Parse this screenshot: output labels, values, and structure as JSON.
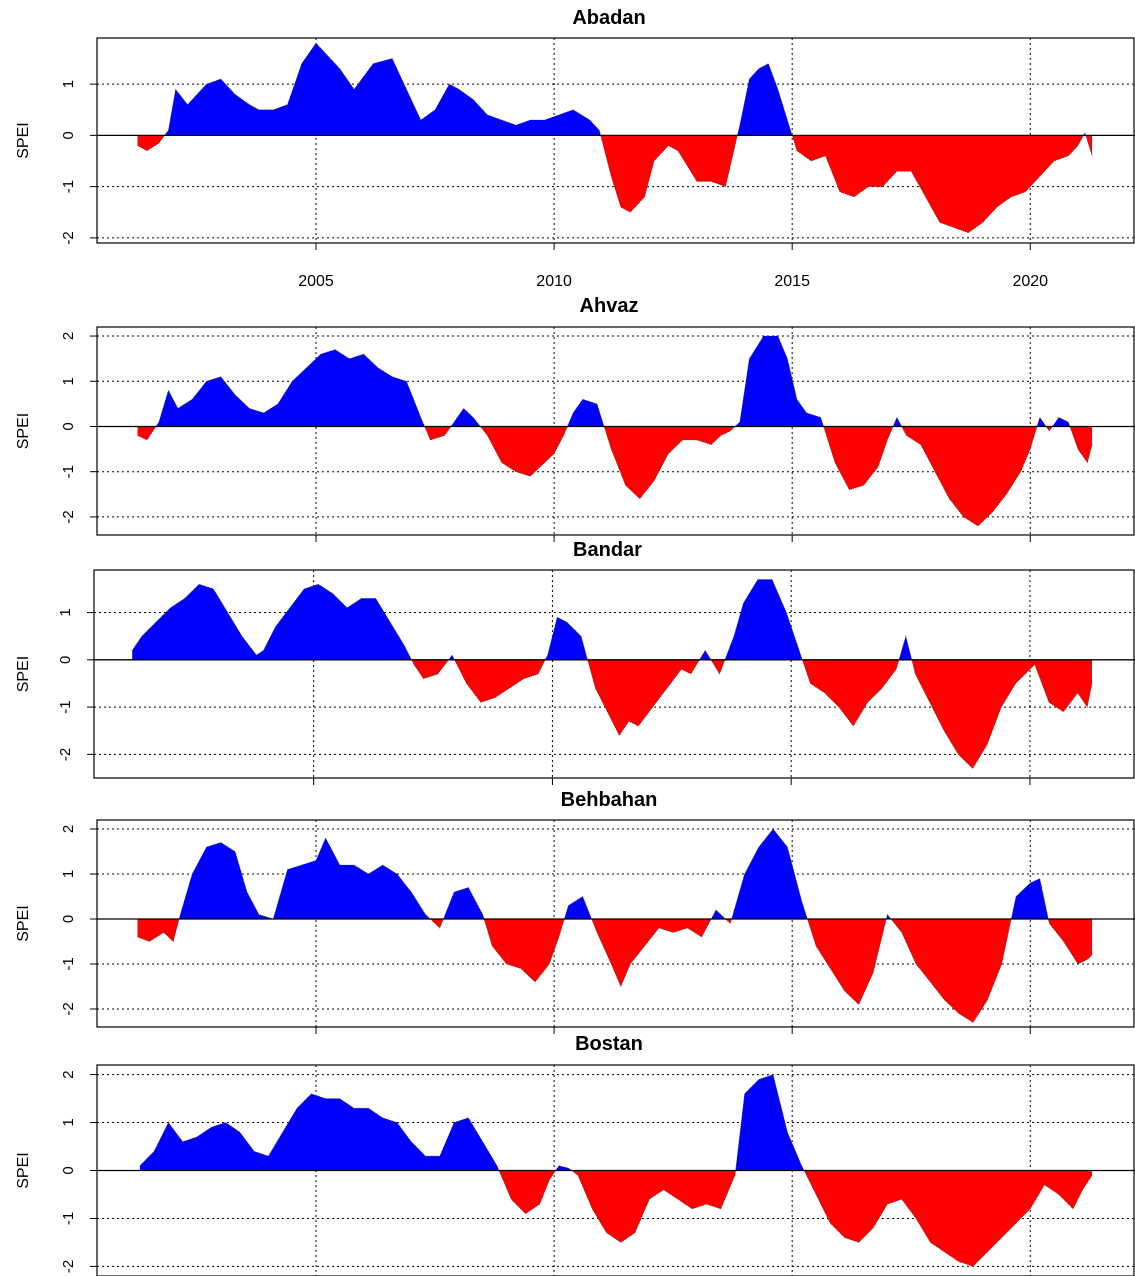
{
  "colors": {
    "positive": "#0000ff",
    "negative": "#ff0000",
    "axis": "#000000",
    "grid": "#000000"
  },
  "chart_data": [
    {
      "type": "area",
      "title": "Abadan",
      "ylabel": "SPEI",
      "xlim": [
        2000.4,
        2022.2
      ],
      "ylim": [
        -2.1,
        1.9
      ],
      "x_ticks": [
        2005,
        2010,
        2015,
        2020
      ],
      "x_tick_labels": [
        "2005",
        "2010",
        "2015",
        "2020"
      ],
      "y_ticks": [
        -2,
        -1,
        0,
        1
      ],
      "grid": true,
      "x": [
        2001.25,
        2001.45,
        2001.7,
        2001.9,
        2002.05,
        2002.3,
        2002.7,
        2003.0,
        2003.3,
        2003.6,
        2003.8,
        2004.1,
        2004.4,
        2004.7,
        2005.0,
        2005.2,
        2005.5,
        2005.8,
        2006.2,
        2006.6,
        2006.9,
        2007.2,
        2007.5,
        2007.8,
        2008.0,
        2008.3,
        2008.6,
        2008.9,
        2009.2,
        2009.5,
        2009.8,
        2010.1,
        2010.4,
        2010.75,
        2010.95,
        2011.2,
        2011.4,
        2011.6,
        2011.9,
        2012.1,
        2012.4,
        2012.6,
        2012.8,
        2013.0,
        2013.3,
        2013.6,
        2013.9,
        2014.1,
        2014.3,
        2014.5,
        2014.7,
        2014.9,
        2015.1,
        2015.4,
        2015.7,
        2016.0,
        2016.3,
        2016.6,
        2016.9,
        2017.2,
        2017.5,
        2017.8,
        2018.1,
        2018.4,
        2018.7,
        2019.0,
        2019.3,
        2019.6,
        2019.9,
        2020.2,
        2020.5,
        2020.8,
        2021.0,
        2021.15,
        2021.3
      ],
      "values": [
        -0.2,
        -0.3,
        -0.15,
        0.1,
        0.9,
        0.6,
        1.0,
        1.1,
        0.8,
        0.6,
        0.5,
        0.5,
        0.6,
        1.4,
        1.8,
        1.6,
        1.3,
        0.9,
        1.4,
        1.5,
        0.9,
        0.3,
        0.5,
        1.0,
        0.9,
        0.7,
        0.4,
        0.3,
        0.2,
        0.3,
        0.3,
        0.4,
        0.5,
        0.3,
        0.1,
        -0.8,
        -1.4,
        -1.5,
        -1.2,
        -0.5,
        -0.2,
        -0.3,
        -0.6,
        -0.9,
        -0.9,
        -1.0,
        0.2,
        1.1,
        1.3,
        1.4,
        0.9,
        0.3,
        -0.3,
        -0.5,
        -0.4,
        -1.1,
        -1.2,
        -1.0,
        -1.0,
        -0.7,
        -0.7,
        -1.2,
        -1.7,
        -1.8,
        -1.9,
        -1.7,
        -1.4,
        -1.2,
        -1.1,
        -0.8,
        -0.5,
        -0.4,
        -0.2,
        0.05,
        -0.4
      ]
    },
    {
      "type": "area",
      "title": "Ahvaz",
      "ylabel": "SPEI",
      "xlim": [
        2000.4,
        2022.2
      ],
      "ylim": [
        -2.4,
        2.2
      ],
      "x_ticks": [
        2005,
        2010,
        2015,
        2020
      ],
      "x_tick_labels": [],
      "y_ticks": [
        -2,
        -1,
        0,
        1,
        2
      ],
      "grid": true,
      "x": [
        2001.25,
        2001.45,
        2001.7,
        2001.9,
        2002.1,
        2002.4,
        2002.7,
        2003.0,
        2003.3,
        2003.6,
        2003.9,
        2004.2,
        2004.5,
        2004.8,
        2005.1,
        2005.4,
        2005.7,
        2006.0,
        2006.3,
        2006.6,
        2006.9,
        2007.2,
        2007.4,
        2007.7,
        2007.9,
        2008.1,
        2008.3,
        2008.6,
        2008.9,
        2009.2,
        2009.5,
        2009.8,
        2010.0,
        2010.2,
        2010.4,
        2010.6,
        2010.9,
        2011.2,
        2011.5,
        2011.8,
        2012.1,
        2012.4,
        2012.7,
        2013.0,
        2013.3,
        2013.5,
        2013.7,
        2013.9,
        2014.1,
        2014.4,
        2014.7,
        2014.9,
        2015.1,
        2015.3,
        2015.6,
        2015.9,
        2016.2,
        2016.5,
        2016.8,
        2017.0,
        2017.2,
        2017.4,
        2017.7,
        2018.0,
        2018.3,
        2018.6,
        2018.9,
        2019.2,
        2019.5,
        2019.8,
        2020.0,
        2020.2,
        2020.4,
        2020.6,
        2020.8,
        2021.0,
        2021.2,
        2021.3
      ],
      "values": [
        -0.2,
        -0.3,
        0.1,
        0.8,
        0.4,
        0.6,
        1.0,
        1.1,
        0.7,
        0.4,
        0.3,
        0.5,
        1.0,
        1.3,
        1.6,
        1.7,
        1.5,
        1.6,
        1.3,
        1.1,
        1.0,
        0.2,
        -0.3,
        -0.2,
        0.1,
        0.4,
        0.2,
        -0.2,
        -0.8,
        -1.0,
        -1.1,
        -0.8,
        -0.6,
        -0.2,
        0.3,
        0.6,
        0.5,
        -0.5,
        -1.3,
        -1.6,
        -1.2,
        -0.6,
        -0.3,
        -0.3,
        -0.4,
        -0.2,
        -0.1,
        0.1,
        1.5,
        2.0,
        2.0,
        1.5,
        0.6,
        0.3,
        0.2,
        -0.8,
        -1.4,
        -1.3,
        -0.9,
        -0.3,
        0.2,
        -0.2,
        -0.4,
        -1.0,
        -1.6,
        -2.0,
        -2.2,
        -1.9,
        -1.5,
        -1.0,
        -0.5,
        0.2,
        -0.1,
        0.2,
        0.1,
        -0.5,
        -0.8,
        -0.4
      ]
    },
    {
      "type": "area",
      "title": "Bandar",
      "ylabel": "SPEI",
      "xlim": [
        2000.4,
        2022.2
      ],
      "ylim": [
        -2.5,
        1.9
      ],
      "x_ticks": [
        2005,
        2010,
        2015,
        2020
      ],
      "x_tick_labels": [],
      "y_ticks": [
        -2,
        -1,
        0,
        1
      ],
      "grid": true,
      "x": [
        2001.2,
        2001.4,
        2001.7,
        2002.0,
        2002.3,
        2002.6,
        2002.9,
        2003.2,
        2003.5,
        2003.8,
        2003.95,
        2004.2,
        2004.5,
        2004.8,
        2005.1,
        2005.4,
        2005.7,
        2006.0,
        2006.3,
        2006.6,
        2006.9,
        2007.1,
        2007.3,
        2007.6,
        2007.9,
        2008.2,
        2008.5,
        2008.8,
        2009.1,
        2009.4,
        2009.7,
        2009.9,
        2010.1,
        2010.3,
        2010.6,
        2010.9,
        2011.2,
        2011.4,
        2011.6,
        2011.8,
        2012.1,
        2012.4,
        2012.7,
        2012.9,
        2013.2,
        2013.5,
        2013.8,
        2014.0,
        2014.3,
        2014.6,
        2014.9,
        2015.1,
        2015.4,
        2015.7,
        2016.0,
        2016.3,
        2016.6,
        2016.9,
        2017.2,
        2017.4,
        2017.6,
        2017.9,
        2018.2,
        2018.5,
        2018.8,
        2019.1,
        2019.4,
        2019.7,
        2019.9,
        2020.1,
        2020.4,
        2020.7,
        2021.0,
        2021.2,
        2021.3
      ],
      "values": [
        0.2,
        0.5,
        0.8,
        1.1,
        1.3,
        1.6,
        1.5,
        1.0,
        0.5,
        0.1,
        0.2,
        0.7,
        1.1,
        1.5,
        1.6,
        1.4,
        1.1,
        1.3,
        1.3,
        0.8,
        0.3,
        -0.1,
        -0.4,
        -0.3,
        0.1,
        -0.5,
        -0.9,
        -0.8,
        -0.6,
        -0.4,
        -0.3,
        0.1,
        0.9,
        0.8,
        0.5,
        -0.6,
        -1.2,
        -1.6,
        -1.3,
        -1.4,
        -1.0,
        -0.6,
        -0.2,
        -0.3,
        0.2,
        -0.3,
        0.5,
        1.2,
        1.7,
        1.7,
        1.0,
        0.4,
        -0.5,
        -0.7,
        -1.0,
        -1.4,
        -0.9,
        -0.6,
        -0.2,
        0.5,
        -0.3,
        -0.9,
        -1.5,
        -2.0,
        -2.3,
        -1.8,
        -1.0,
        -0.5,
        -0.3,
        -0.1,
        -0.9,
        -1.1,
        -0.7,
        -1.0,
        -0.5
      ]
    },
    {
      "type": "area",
      "title": "Behbahan",
      "ylabel": "SPEI",
      "xlim": [
        2000.4,
        2022.2
      ],
      "ylim": [
        -2.4,
        2.2
      ],
      "x_ticks": [
        2005,
        2010,
        2015,
        2020
      ],
      "x_tick_labels": [],
      "y_ticks": [
        -2,
        -1,
        0,
        1,
        2
      ],
      "grid": true,
      "x": [
        2001.25,
        2001.5,
        2001.8,
        2002.0,
        2002.15,
        2002.4,
        2002.7,
        2003.0,
        2003.3,
        2003.55,
        2003.8,
        2004.1,
        2004.4,
        2004.7,
        2005.0,
        2005.2,
        2005.5,
        2005.8,
        2006.1,
        2006.4,
        2006.7,
        2007.0,
        2007.3,
        2007.6,
        2007.9,
        2008.2,
        2008.5,
        2008.7,
        2009.0,
        2009.3,
        2009.6,
        2009.9,
        2010.1,
        2010.3,
        2010.6,
        2010.9,
        2011.2,
        2011.4,
        2011.6,
        2011.9,
        2012.2,
        2012.5,
        2012.8,
        2013.1,
        2013.4,
        2013.7,
        2014.0,
        2014.3,
        2014.6,
        2014.9,
        2015.2,
        2015.5,
        2015.8,
        2016.1,
        2016.4,
        2016.7,
        2017.0,
        2017.3,
        2017.6,
        2017.9,
        2018.2,
        2018.5,
        2018.8,
        2019.1,
        2019.4,
        2019.7,
        2020.0,
        2020.2,
        2020.4,
        2020.7,
        2021.0,
        2021.2,
        2021.3
      ],
      "values": [
        -0.4,
        -0.5,
        -0.3,
        -0.5,
        0.1,
        1.0,
        1.6,
        1.7,
        1.5,
        0.6,
        0.1,
        0.0,
        1.1,
        1.2,
        1.3,
        1.8,
        1.2,
        1.2,
        1.0,
        1.2,
        1.0,
        0.6,
        0.1,
        -0.2,
        0.6,
        0.7,
        0.1,
        -0.6,
        -1.0,
        -1.1,
        -1.4,
        -1.0,
        -0.4,
        0.3,
        0.5,
        -0.3,
        -1.0,
        -1.5,
        -1.0,
        -0.6,
        -0.2,
        -0.3,
        -0.2,
        -0.4,
        0.2,
        -0.1,
        1.0,
        1.6,
        2.0,
        1.6,
        0.4,
        -0.6,
        -1.1,
        -1.6,
        -1.9,
        -1.2,
        0.1,
        -0.3,
        -1.0,
        -1.4,
        -1.8,
        -2.1,
        -2.3,
        -1.8,
        -1.0,
        0.5,
        0.8,
        0.9,
        -0.1,
        -0.5,
        -1.0,
        -0.9,
        -0.8
      ]
    },
    {
      "type": "area",
      "title": "Bostan",
      "ylabel": "SPEI",
      "xlim": [
        2000.4,
        2022.2
      ],
      "ylim": [
        -2.2,
        2.2
      ],
      "x_ticks": [
        2005,
        2010,
        2015,
        2020
      ],
      "x_tick_labels": [],
      "y_ticks": [
        -2,
        -1,
        0,
        1,
        2
      ],
      "grid": true,
      "x": [
        2001.3,
        2001.6,
        2001.9,
        2002.2,
        2002.5,
        2002.8,
        2003.1,
        2003.4,
        2003.7,
        2004.0,
        2004.3,
        2004.6,
        2004.9,
        2005.2,
        2005.5,
        2005.8,
        2006.1,
        2006.4,
        2006.7,
        2007.0,
        2007.3,
        2007.6,
        2007.9,
        2008.2,
        2008.5,
        2008.8,
        2009.1,
        2009.4,
        2009.7,
        2009.9,
        2010.1,
        2010.3,
        2010.5,
        2010.8,
        2011.1,
        2011.4,
        2011.7,
        2012.0,
        2012.3,
        2012.6,
        2012.9,
        2013.2,
        2013.5,
        2013.8,
        2014.0,
        2014.3,
        2014.6,
        2014.9,
        2015.2,
        2015.5,
        2015.8,
        2016.1,
        2016.4,
        2016.7,
        2017.0,
        2017.3,
        2017.6,
        2017.9,
        2018.2,
        2018.5,
        2018.8,
        2019.1,
        2019.4,
        2019.7,
        2020.0,
        2020.3,
        2020.6,
        2020.9,
        2021.1,
        2021.3
      ],
      "values": [
        0.1,
        0.4,
        1.0,
        0.6,
        0.7,
        0.9,
        1.0,
        0.8,
        0.4,
        0.3,
        0.8,
        1.3,
        1.6,
        1.5,
        1.5,
        1.3,
        1.3,
        1.1,
        1.0,
        0.6,
        0.3,
        0.3,
        1.0,
        1.1,
        0.6,
        0.1,
        -0.6,
        -0.9,
        -0.7,
        -0.2,
        0.1,
        0.05,
        -0.1,
        -0.8,
        -1.3,
        -1.5,
        -1.3,
        -0.6,
        -0.4,
        -0.6,
        -0.8,
        -0.7,
        -0.8,
        -0.1,
        1.6,
        1.9,
        2.0,
        0.8,
        0.1,
        -0.5,
        -1.1,
        -1.4,
        -1.5,
        -1.2,
        -0.7,
        -0.6,
        -1.0,
        -1.5,
        -1.7,
        -1.9,
        -2.0,
        -1.7,
        -1.4,
        -1.1,
        -0.8,
        -0.3,
        -0.5,
        -0.8,
        -0.4,
        -0.1
      ]
    }
  ]
}
